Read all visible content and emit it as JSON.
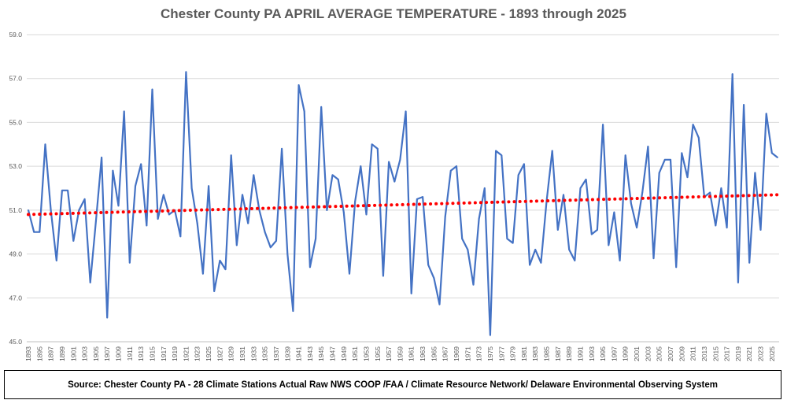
{
  "chart_data": {
    "type": "line",
    "title": "Chester County PA APRIL AVERAGE TEMPERATURE - 1893 through 2025",
    "xlabel": "",
    "ylabel": "",
    "ylim": [
      45.0,
      59.0
    ],
    "y_ticks": [
      "45.0",
      "47.0",
      "49.0",
      "51.0",
      "53.0",
      "55.0",
      "57.0",
      "59.0"
    ],
    "x_ticks": [
      "1893",
      "1895",
      "1897",
      "1899",
      "1901",
      "1903",
      "1905",
      "1907",
      "1909",
      "1911",
      "1913",
      "1915",
      "1917",
      "1919",
      "1921",
      "1923",
      "1925",
      "1927",
      "1929",
      "1931",
      "1933",
      "1935",
      "1937",
      "1939",
      "1941",
      "1943",
      "1945",
      "1947",
      "1949",
      "1951",
      "1953",
      "1955",
      "1957",
      "1959",
      "1961",
      "1963",
      "1965",
      "1967",
      "1969",
      "1971",
      "1973",
      "1975",
      "1977",
      "1979",
      "1981",
      "1983",
      "1985",
      "1987",
      "1989",
      "1991",
      "1993",
      "1995",
      "1997",
      "1999",
      "2001",
      "2003",
      "2005",
      "2007",
      "2009",
      "2011",
      "2013",
      "2015",
      "2017",
      "2019",
      "2021",
      "2023",
      "2025"
    ],
    "grid": "horizontal",
    "legend": "none",
    "x_start_year": 1893,
    "series": [
      {
        "color": "#4472C4",
        "values": [
          51.0,
          50.0,
          50.0,
          54.0,
          51.0,
          48.7,
          51.9,
          51.9,
          49.6,
          51.0,
          51.5,
          47.7,
          50.5,
          53.4,
          46.1,
          52.8,
          51.2,
          55.5,
          48.6,
          52.1,
          53.1,
          50.3,
          56.5,
          50.6,
          51.7,
          50.8,
          51.0,
          49.8,
          57.3,
          52.0,
          50.4,
          48.1,
          52.1,
          47.3,
          48.7,
          48.3,
          53.5,
          49.4,
          51.7,
          50.4,
          52.6,
          51.0,
          50.0,
          49.3,
          49.6,
          53.8,
          49.0,
          46.4,
          56.7,
          55.5,
          48.4,
          49.7,
          55.7,
          51.0,
          52.6,
          52.4,
          50.9,
          48.1,
          51.4,
          53.0,
          50.8,
          54.0,
          53.8,
          48.0,
          53.2,
          52.3,
          53.3,
          55.5,
          47.2,
          51.5,
          51.6,
          48.5,
          47.9,
          46.7,
          50.7,
          52.8,
          53.0,
          49.7,
          49.2,
          47.6,
          50.6,
          52.0,
          45.3,
          53.7,
          53.5,
          49.7,
          49.5,
          52.6,
          53.1,
          48.5,
          49.2,
          48.6,
          51.4,
          53.7,
          50.1,
          51.7,
          49.2,
          48.7,
          52.0,
          52.4,
          49.9,
          50.1,
          54.9,
          49.4,
          50.9,
          48.7,
          53.5,
          51.3,
          50.2,
          51.8,
          53.9,
          48.8,
          52.7,
          53.3,
          53.3,
          48.4,
          53.6,
          52.5,
          54.9,
          54.3,
          51.6,
          51.8,
          50.3,
          52.0,
          50.2,
          57.2,
          47.7,
          55.8,
          48.6,
          52.7,
          50.1,
          55.4,
          53.6,
          53.4
        ]
      }
    ],
    "trendline": {
      "color": "#FF0000",
      "start": 50.8,
      "end": 51.7
    }
  },
  "source_text": "Source: Chester County PA - 28 Climate Stations Actual Raw NWS COOP /FAA / Climate Resource Network/ Delaware Environmental Observing System"
}
